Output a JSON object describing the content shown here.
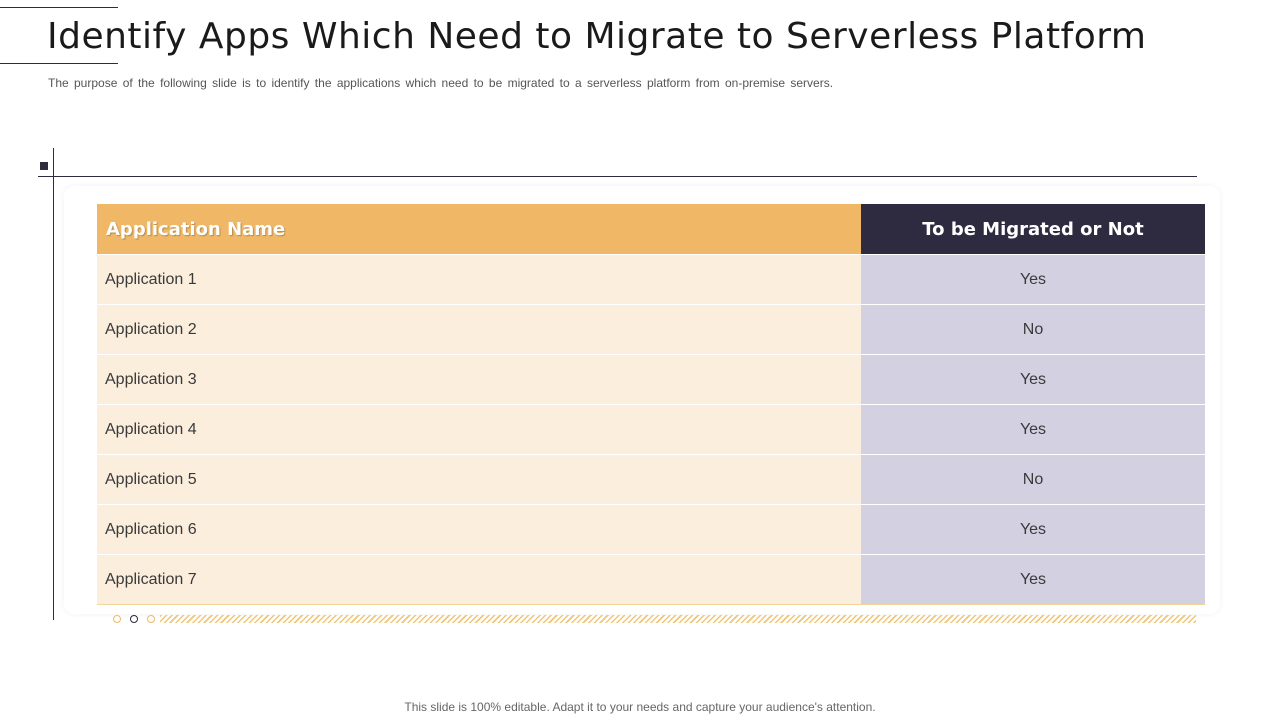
{
  "slide": {
    "title": "Identify Apps Which Need to Migrate to Serverless Platform",
    "subtitle": "The purpose of the following slide is to identify the applications which need to be migrated to a serverless platform from on-premise servers.",
    "footer": "This slide is 100% editable. Adapt it to your needs and capture your audience's attention."
  },
  "table": {
    "headers": [
      "Application Name",
      "To be Migrated or Not"
    ],
    "rows": [
      [
        "Application 1",
        "Yes"
      ],
      [
        "Application 2",
        "No"
      ],
      [
        "Application 3",
        "Yes"
      ],
      [
        "Application 4",
        "Yes"
      ],
      [
        "Application 5",
        "No"
      ],
      [
        "Application 6",
        "Yes"
      ],
      [
        "Application 7",
        "Yes"
      ]
    ]
  },
  "colors": {
    "accent_orange": "#f0b866",
    "accent_navy": "#2e2a40",
    "name_cell_bg": "#fbeedc",
    "status_cell_bg": "#d3d0e2"
  }
}
